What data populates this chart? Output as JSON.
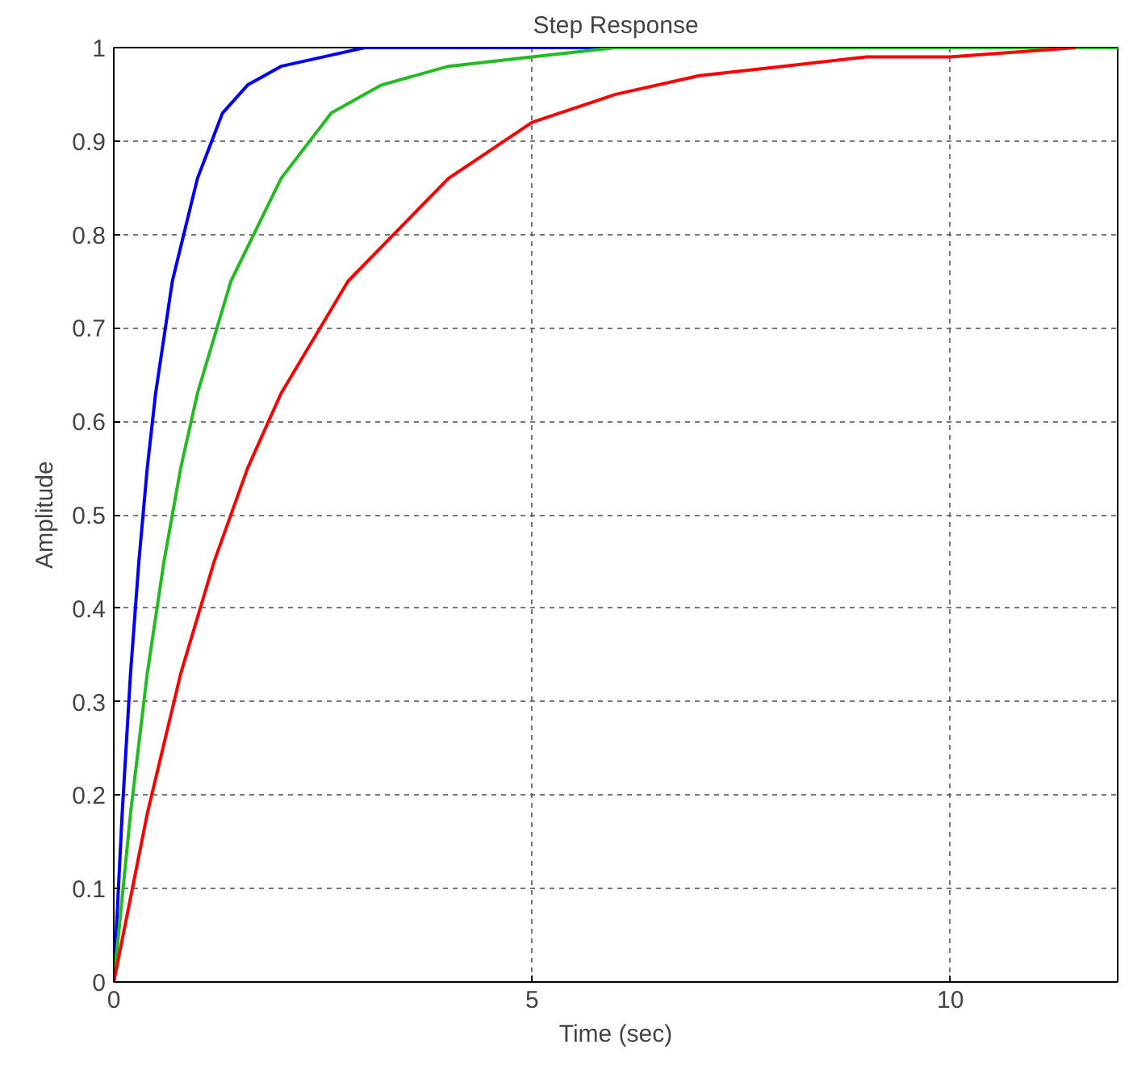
{
  "chart_data": {
    "type": "line",
    "title": "Step Response",
    "xlabel": "Time (sec)",
    "ylabel": "Amplitude",
    "xlim": [
      0,
      12
    ],
    "xticks": [
      0,
      5,
      10
    ],
    "ylim": [
      0,
      1
    ],
    "yticks": [
      0,
      0.1,
      0.2,
      0.3,
      0.4,
      0.5,
      0.6,
      0.7,
      0.8,
      0.9,
      1
    ],
    "grid": true,
    "line_style": "solid",
    "marker": "none",
    "series": [
      {
        "color": "#0000ff",
        "x": [
          0,
          0.1,
          0.2,
          0.3,
          0.4,
          0.5,
          0.7,
          1.0,
          1.3,
          1.6,
          2.0,
          2.5,
          3.0,
          5.8
        ],
        "values": [
          0,
          0.18,
          0.33,
          0.45,
          0.55,
          0.63,
          0.75,
          0.86,
          0.93,
          0.96,
          0.98,
          0.99,
          1.0,
          1.0
        ]
      },
      {
        "color": "#22bb22",
        "x": [
          0,
          0.2,
          0.4,
          0.6,
          0.8,
          1.0,
          1.4,
          2.0,
          2.6,
          3.2,
          4.0,
          5.0,
          6.0,
          12
        ],
        "values": [
          0,
          0.18,
          0.33,
          0.45,
          0.55,
          0.63,
          0.75,
          0.86,
          0.93,
          0.96,
          0.98,
          0.99,
          1.0,
          1.0
        ]
      },
      {
        "color": "#ff0000",
        "x": [
          0,
          0.4,
          0.8,
          1.2,
          1.6,
          2.0,
          2.8,
          4.0,
          5.0,
          6.0,
          7.0,
          8.0,
          9.0,
          10.0,
          11.5
        ],
        "values": [
          0,
          0.18,
          0.33,
          0.45,
          0.55,
          0.63,
          0.75,
          0.86,
          0.92,
          0.95,
          0.97,
          0.98,
          0.99,
          0.99,
          1.0
        ]
      }
    ]
  }
}
